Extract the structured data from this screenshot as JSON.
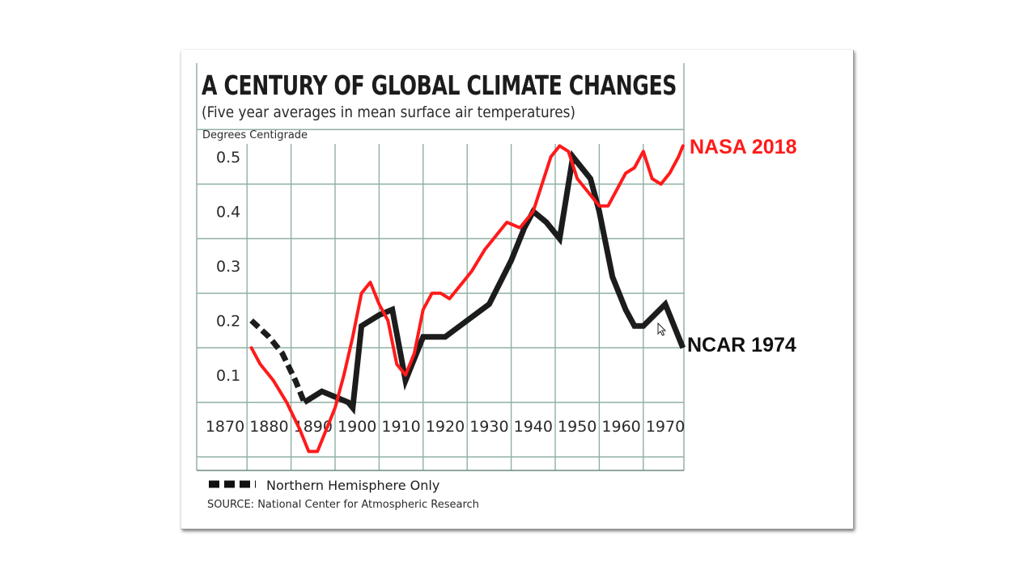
{
  "chart_data": {
    "type": "line",
    "title": "A CENTURY OF GLOBAL CLIMATE CHANGES",
    "subtitle": "(Five year averages in mean surface air temperatures)",
    "ylabel": "Degrees Centigrade",
    "xlabel": "",
    "xlim": [
      1866,
      1974
    ],
    "ylim": [
      -0.08,
      0.53
    ],
    "y_ticks": [
      "0.5",
      "0.4",
      "0.3",
      "0.2",
      "0.1"
    ],
    "y_tick_values": [
      0.5,
      0.4,
      0.3,
      0.2,
      0.1
    ],
    "x_ticks": [
      "1870",
      "1880",
      "1890",
      "1900",
      "1910",
      "1920",
      "1930",
      "1940",
      "1950",
      "1960",
      "1970"
    ],
    "x_tick_values": [
      1870,
      1880,
      1890,
      1900,
      1910,
      1920,
      1930,
      1940,
      1950,
      1960,
      1970
    ],
    "grid": true,
    "series": [
      {
        "name": "NCAR 1974",
        "color": "#1c1c1c",
        "segments": [
          {
            "style": "dashed",
            "x": [
              1876,
              1880,
              1883,
              1886,
              1888
            ],
            "y": [
              0.2,
              0.17,
              0.14,
              0.09,
              0.05
            ]
          },
          {
            "style": "solid",
            "x": [
              1888,
              1892,
              1898,
              1899,
              1901,
              1905,
              1908,
              1911,
              1915,
              1920,
              1925,
              1930,
              1935,
              1938,
              1940,
              1943,
              1946,
              1949,
              1953,
              1955,
              1958,
              1961,
              1963,
              1965,
              1970,
              1974
            ],
            "y": [
              0.05,
              0.07,
              0.05,
              0.04,
              0.19,
              0.21,
              0.22,
              0.09,
              0.17,
              0.17,
              0.2,
              0.23,
              0.31,
              0.37,
              0.4,
              0.38,
              0.35,
              0.5,
              0.46,
              0.4,
              0.28,
              0.22,
              0.19,
              0.19,
              0.23,
              0.15
            ]
          }
        ]
      },
      {
        "name": "NASA 2018",
        "color": "#ff1a1a",
        "x": [
          1876,
          1878,
          1881,
          1884,
          1887,
          1889,
          1891,
          1893,
          1895,
          1897,
          1899,
          1901,
          1903,
          1905,
          1907,
          1909,
          1911,
          1913,
          1915,
          1917,
          1919,
          1921,
          1924,
          1926,
          1929,
          1932,
          1934,
          1937,
          1940,
          1942,
          1944,
          1946,
          1948,
          1950,
          1952,
          1955,
          1957,
          1959,
          1961,
          1963,
          1965,
          1967,
          1969,
          1971,
          1973,
          1974
        ],
        "y": [
          0.15,
          0.12,
          0.09,
          0.05,
          0.0,
          -0.04,
          -0.04,
          0.0,
          0.04,
          0.1,
          0.17,
          0.25,
          0.27,
          0.23,
          0.2,
          0.12,
          0.1,
          0.14,
          0.22,
          0.25,
          0.25,
          0.24,
          0.27,
          0.29,
          0.33,
          0.36,
          0.38,
          0.37,
          0.4,
          0.45,
          0.5,
          0.52,
          0.51,
          0.46,
          0.44,
          0.41,
          0.41,
          0.44,
          0.47,
          0.48,
          0.51,
          0.46,
          0.45,
          0.47,
          0.5,
          0.52
        ]
      }
    ],
    "series_labels": [
      {
        "text": "NASA 2018",
        "color": "#ff1a1a"
      },
      {
        "text": "NCAR 1974",
        "color": "#111111"
      }
    ],
    "legend": {
      "position": "bottom-left",
      "entries": [
        {
          "label": "Northern Hemisphere Only",
          "style": "dashed"
        }
      ]
    },
    "source": "SOURCE: National Center for Atmospheric Research"
  },
  "cursor": {
    "icon": "mouse-pointer-icon"
  }
}
